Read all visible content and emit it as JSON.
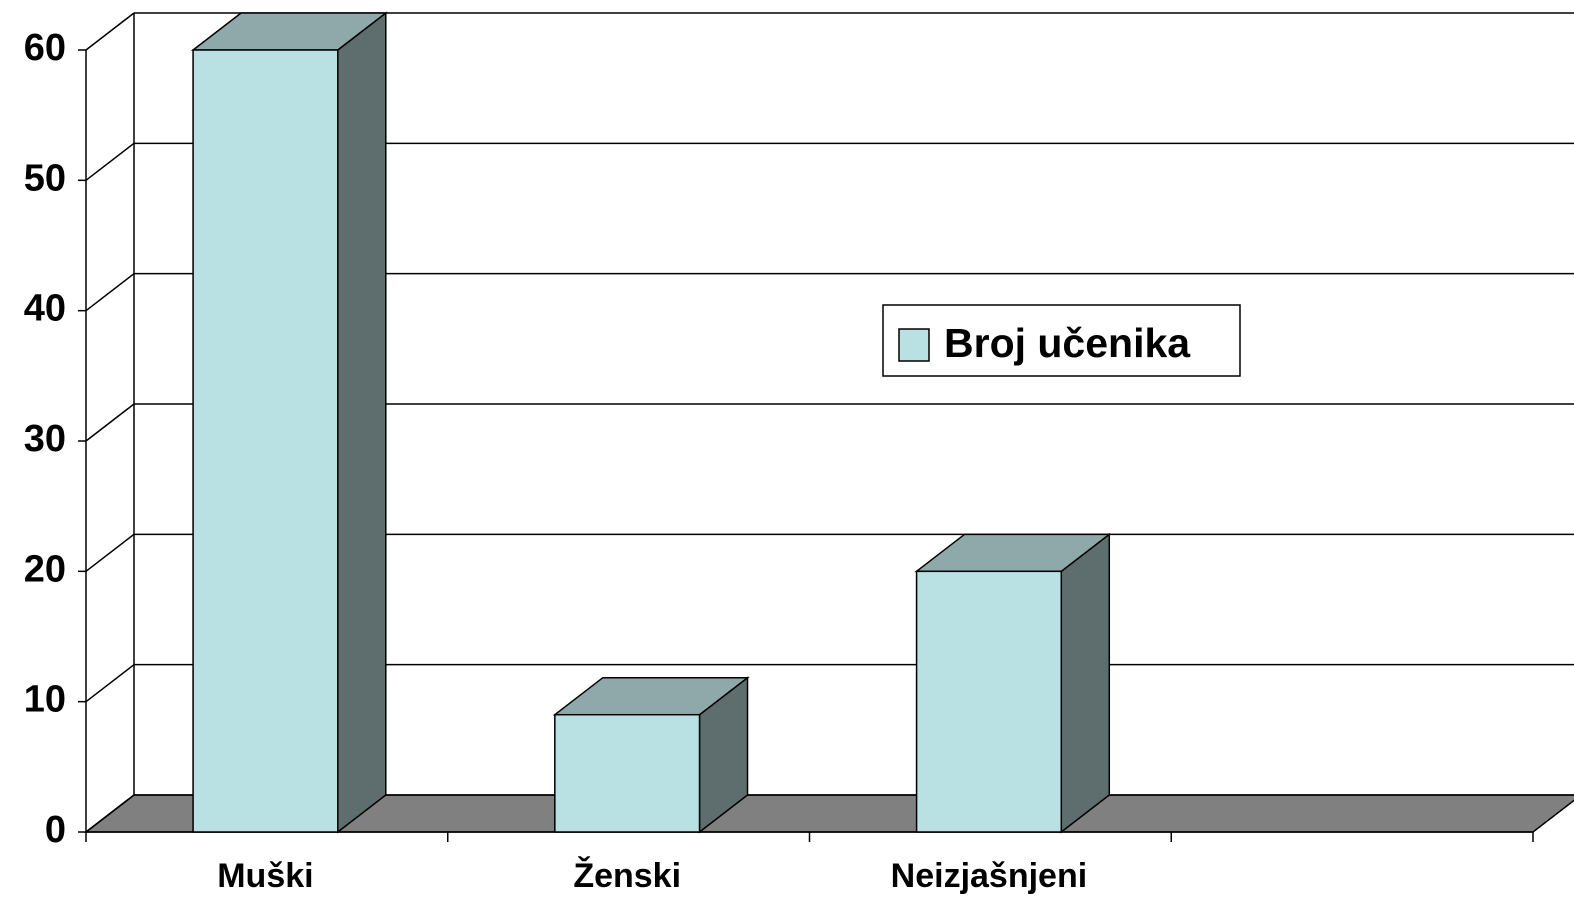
{
  "chart_data": {
    "type": "bar",
    "categories": [
      "Muški",
      "Ženski",
      "Neizjašnjeni",
      null
    ],
    "series": [
      {
        "name": "Broj učenika",
        "color": "#b9e0e2",
        "values": [
          60,
          9,
          20,
          null
        ]
      }
    ],
    "ylim": [
      0,
      60
    ],
    "yticks": [
      0,
      10,
      20,
      30,
      40,
      50,
      60
    ],
    "grid": true,
    "legend": "right"
  }
}
